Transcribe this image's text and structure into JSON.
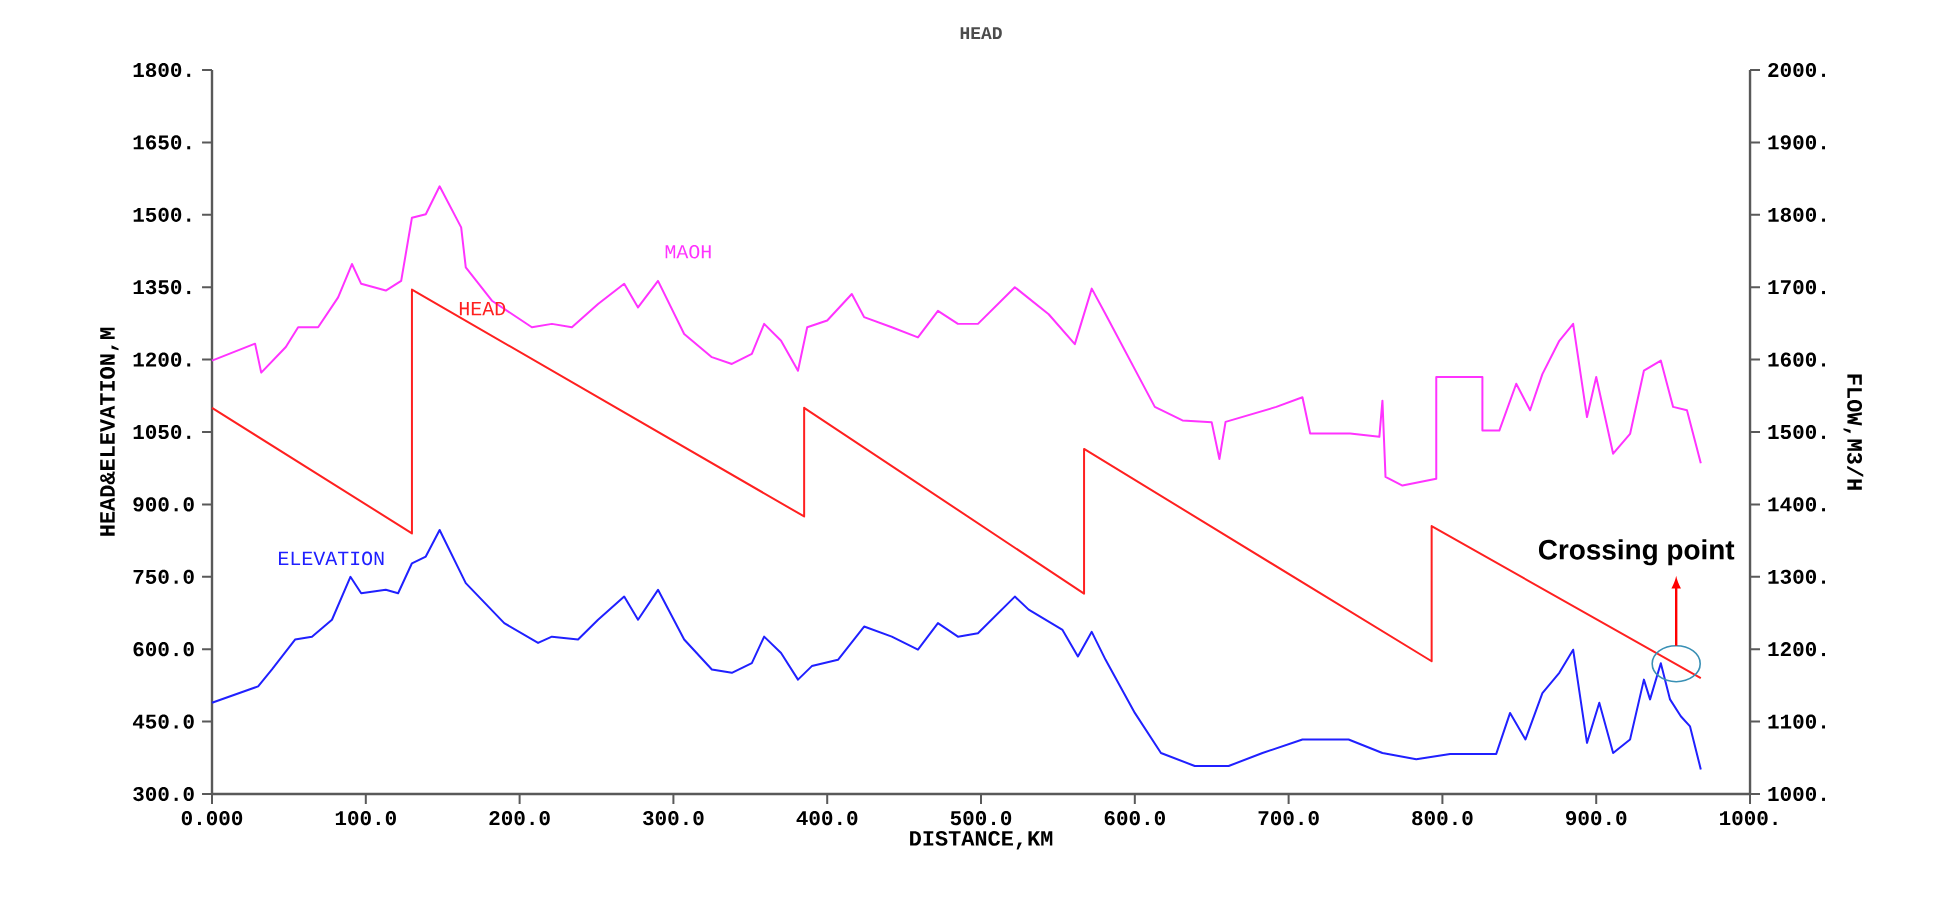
{
  "chart_data": {
    "type": "line",
    "title": "HEAD",
    "xlabel": "DISTANCE,KM",
    "ylabel": "HEAD&ELEVATION,M",
    "y2label": "FLOW,M3/H",
    "xlim": [
      0,
      1000
    ],
    "ylim": [
      300,
      1800
    ],
    "y2lim": [
      1000,
      2000
    ],
    "xticks": [
      {
        "value": 0,
        "label": "0.000"
      },
      {
        "value": 100,
        "label": "100.0"
      },
      {
        "value": 200,
        "label": "200.0"
      },
      {
        "value": 300,
        "label": "300.0"
      },
      {
        "value": 400,
        "label": "400.0"
      },
      {
        "value": 500,
        "label": "500.0"
      },
      {
        "value": 600,
        "label": "600.0"
      },
      {
        "value": 700,
        "label": "700.0"
      },
      {
        "value": 800,
        "label": "800.0"
      },
      {
        "value": 900,
        "label": "900.0"
      },
      {
        "value": 1000,
        "label": "1000."
      }
    ],
    "yticks": [
      {
        "value": 300,
        "label": "300.0"
      },
      {
        "value": 450,
        "label": "450.0"
      },
      {
        "value": 600,
        "label": "600.0"
      },
      {
        "value": 750,
        "label": "750.0"
      },
      {
        "value": 900,
        "label": "900.0"
      },
      {
        "value": 1050,
        "label": "1050."
      },
      {
        "value": 1200,
        "label": "1200."
      },
      {
        "value": 1350,
        "label": "1350."
      },
      {
        "value": 1500,
        "label": "1500."
      },
      {
        "value": 1650,
        "label": "1650."
      },
      {
        "value": 1800,
        "label": "1800."
      }
    ],
    "y2ticks": [
      {
        "value": 1000,
        "label": "1000."
      },
      {
        "value": 1100,
        "label": "1100."
      },
      {
        "value": 1200,
        "label": "1200."
      },
      {
        "value": 1300,
        "label": "1300."
      },
      {
        "value": 1400,
        "label": "1400."
      },
      {
        "value": 1500,
        "label": "1500."
      },
      {
        "value": 1600,
        "label": "1600."
      },
      {
        "value": 1700,
        "label": "1700."
      },
      {
        "value": 1800,
        "label": "1800."
      },
      {
        "value": 1900,
        "label": "1900."
      },
      {
        "value": 2000,
        "label": "2000."
      }
    ],
    "grid": false,
    "legend": false,
    "marker": "none",
    "line_style": "solid",
    "series": [
      {
        "name": "MAOH",
        "color": "#ff33ff",
        "x": [
          0,
          28,
          32,
          48,
          56,
          69,
          82,
          91,
          97,
          113,
          123,
          130,
          139,
          148,
          162,
          165,
          182,
          208,
          221,
          234,
          251,
          268,
          277,
          290,
          307,
          325,
          338,
          351,
          359,
          370,
          381,
          387,
          400,
          416,
          424,
          442,
          459,
          472,
          485,
          498,
          522,
          544,
          561,
          572,
          581,
          613,
          631,
          650,
          655,
          659,
          692,
          709,
          714,
          740,
          759,
          761,
          763,
          774,
          796,
          796,
          826,
          826,
          837,
          848,
          857,
          865,
          876,
          885,
          894,
          900,
          911,
          922,
          931,
          942,
          950,
          959,
          968
        ],
        "values": [
          1198,
          1233,
          1173,
          1226,
          1267,
          1267,
          1329,
          1398,
          1357,
          1343,
          1363,
          1494,
          1501,
          1559,
          1474,
          1391,
          1322,
          1267,
          1274,
          1267,
          1315,
          1357,
          1308,
          1363,
          1253,
          1205,
          1191,
          1212,
          1274,
          1239,
          1177,
          1267,
          1281,
          1336,
          1288,
          1267,
          1246,
          1301,
          1274,
          1274,
          1350,
          1294,
          1232,
          1347,
          1294,
          1102,
          1074,
          1070,
          994,
          1071,
          1102,
          1122,
          1047,
          1047,
          1040,
          1115,
          957,
          939,
          953,
          1164,
          1164,
          1053,
          1053,
          1150,
          1095,
          1170,
          1239,
          1274,
          1081,
          1164,
          1005,
          1046,
          1177,
          1198,
          1102,
          1095,
          985
        ]
      },
      {
        "name": "HEAD",
        "color": "#ff2020",
        "x": [
          0,
          130,
          130,
          385,
          385,
          567,
          567,
          793,
          793,
          968
        ],
        "values": [
          1100,
          840,
          1345,
          875,
          1100,
          715,
          1015,
          575,
          855,
          540
        ]
      },
      {
        "name": "ELEVATION",
        "color": "#2020ff",
        "x": [
          0,
          30,
          39,
          54,
          65,
          78,
          90,
          97,
          113,
          121,
          130,
          139,
          148,
          165,
          190,
          212,
          221,
          238,
          251,
          268,
          277,
          290,
          307,
          325,
          338,
          351,
          359,
          370,
          381,
          390,
          407,
          424,
          442,
          459,
          472,
          485,
          498,
          522,
          531,
          553,
          563,
          572,
          581,
          600,
          617,
          639,
          661,
          683,
          709,
          739,
          761,
          783,
          805,
          835,
          844,
          854,
          865,
          876,
          885,
          894,
          902,
          911,
          922,
          931,
          935,
          942,
          948,
          955,
          961,
          968
        ],
        "values": [
          489,
          523,
          558,
          620,
          626,
          661,
          750,
          716,
          723,
          716,
          778,
          792,
          847,
          737,
          654,
          613,
          626,
          620,
          661,
          709,
          661,
          723,
          620,
          558,
          551,
          571,
          626,
          592,
          537,
          565,
          578,
          647,
          626,
          599,
          654,
          626,
          633,
          709,
          682,
          640,
          585,
          636,
          578,
          468,
          385,
          358,
          358,
          385,
          413,
          413,
          385,
          372,
          383,
          383,
          468,
          413,
          509,
          551,
          599,
          406,
          489,
          385,
          413,
          537,
          496,
          571,
          496,
          461,
          440,
          351
        ]
      }
    ],
    "annotations": [
      {
        "text": "Crossing point",
        "x": 952,
        "y": 570
      }
    ]
  }
}
